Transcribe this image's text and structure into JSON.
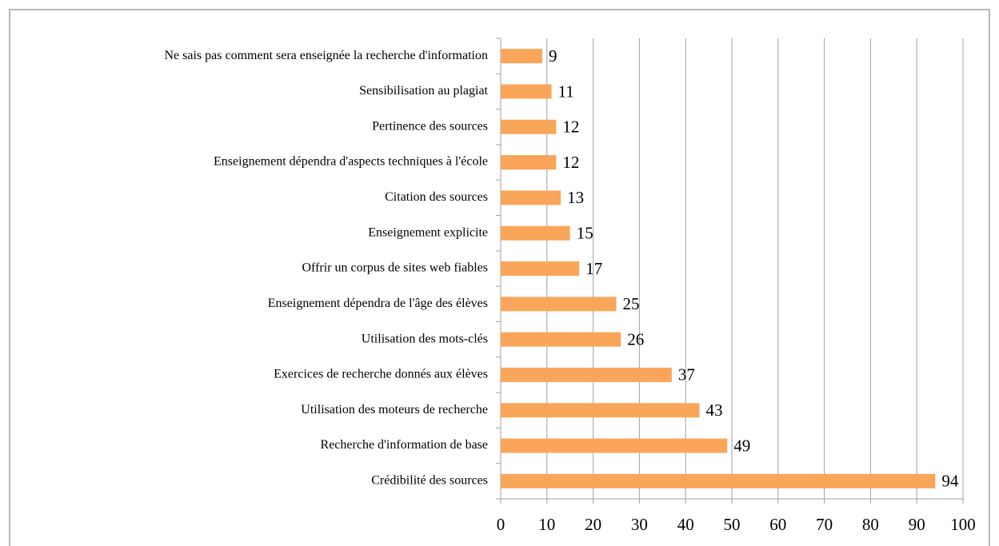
{
  "chart_data": {
    "type": "bar",
    "orientation": "horizontal",
    "categories": [
      "Ne sais pas comment sera enseignée la recherche d'information",
      "Sensibilisation au plagiat",
      "Pertinence des sources",
      "Enseignement dépendra d'aspects techniques à l'école",
      "Citation des sources",
      "Enseignement explicite",
      "Offrir un corpus de sites web fiables",
      "Enseignement dépendra de l'âge des élèves",
      "Utilisation des mots-clés",
      "Exercices de recherche donnés aux élèves",
      "Utilisation des moteurs de recherche",
      "Recherche d'information de base",
      "Crédibilité des sources"
    ],
    "values": [
      9,
      11,
      12,
      12,
      13,
      15,
      17,
      25,
      26,
      37,
      43,
      49,
      94
    ],
    "color": "#f9a65a",
    "xlim": [
      0,
      100
    ],
    "xticks": [
      0,
      10,
      20,
      30,
      40,
      50,
      60,
      70,
      80,
      90,
      100
    ],
    "grid": true
  }
}
